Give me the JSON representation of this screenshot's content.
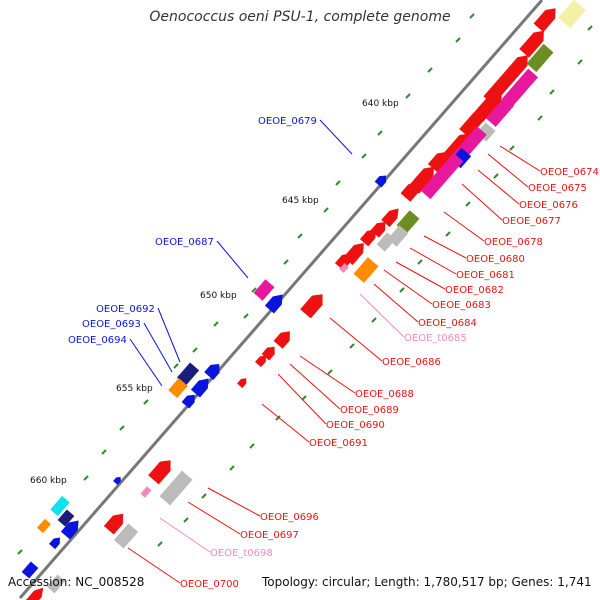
{
  "title": "Oenococcus oeni PSU-1, complete genome",
  "accession": "Accession: NC_008528",
  "topology": "Topology: circular; Length: 1,780,517 bp; Genes: 1,741",
  "colors": {
    "backbone": "#777777",
    "tick": "#2e8b2e",
    "red": "#ee1111",
    "blue": "#0a14dd",
    "pink_label": "#f08cb4",
    "magenta": "#e8189c",
    "olive": "#6b8e23",
    "gray": "#bbbbbb",
    "orange": "#ff8c00",
    "cream": "#f5f0a8",
    "navy": "#1c1c7a",
    "cyan": "#11e0ee"
  },
  "scale_labels": [
    {
      "label": "640 kbp"
    },
    {
      "label": "645 kbp"
    },
    {
      "label": "650 kbp"
    },
    {
      "label": "655 kbp"
    },
    {
      "label": "660 kbp"
    }
  ],
  "gene_labels": [
    {
      "text": "OEOE_0674",
      "strand": "reverse"
    },
    {
      "text": "OEOE_0675",
      "strand": "reverse"
    },
    {
      "text": "OEOE_0676",
      "strand": "reverse"
    },
    {
      "text": "OEOE_0677",
      "strand": "reverse"
    },
    {
      "text": "OEOE_0678",
      "strand": "reverse"
    },
    {
      "text": "OEOE_0680",
      "strand": "reverse"
    },
    {
      "text": "OEOE_0681",
      "strand": "reverse"
    },
    {
      "text": "OEOE_0682",
      "strand": "reverse"
    },
    {
      "text": "OEOE_0683",
      "strand": "reverse"
    },
    {
      "text": "OEOE_0684",
      "strand": "reverse"
    },
    {
      "text": "OEOE_t0685",
      "strand": "reverse-rna"
    },
    {
      "text": "OEOE_0686",
      "strand": "reverse"
    },
    {
      "text": "OEOE_0688",
      "strand": "reverse"
    },
    {
      "text": "OEOE_0689",
      "strand": "reverse"
    },
    {
      "text": "OEOE_0690",
      "strand": "reverse"
    },
    {
      "text": "OEOE_0691",
      "strand": "reverse"
    },
    {
      "text": "OEOE_0696",
      "strand": "reverse"
    },
    {
      "text": "OEOE_0697",
      "strand": "reverse"
    },
    {
      "text": "OEOE_t0698",
      "strand": "reverse-rna"
    },
    {
      "text": "OEOE_0700",
      "strand": "reverse"
    },
    {
      "text": "OEOE_0679",
      "strand": "forward"
    },
    {
      "text": "OEOE_0687",
      "strand": "forward"
    },
    {
      "text": "OEOE_0692",
      "strand": "forward"
    },
    {
      "text": "OEOE_0693",
      "strand": "forward"
    },
    {
      "text": "OEOE_0694",
      "strand": "forward"
    }
  ]
}
